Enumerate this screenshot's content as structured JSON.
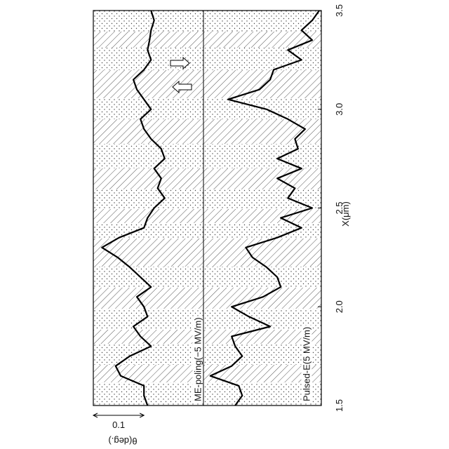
{
  "chart_data": {
    "type": "line",
    "xlabel": "X(μm)",
    "ylabel": "θ(deg.)",
    "xlim": [
      1.5,
      3.5
    ],
    "xticks": [
      1.5,
      {
        "value": 2.0,
        "label": "2.0"
      },
      2.5,
      {
        "value": 3.0,
        "label": "3.0"
      },
      3.5
    ],
    "ylim": [
      0,
      0.45
    ],
    "scale_bar": {
      "value": 0.1
    },
    "x": [
      1.5,
      1.55,
      1.6,
      1.65,
      1.7,
      1.75,
      1.8,
      1.85,
      1.9,
      1.95,
      2.0,
      2.05,
      2.1,
      2.15,
      2.2,
      2.25,
      2.3,
      2.35,
      2.4,
      2.45,
      2.5,
      2.55,
      2.6,
      2.65,
      2.7,
      2.75,
      2.8,
      2.85,
      2.9,
      2.95,
      3.0,
      3.05,
      3.1,
      3.15,
      3.2,
      3.25,
      3.3,
      3.35,
      3.4,
      3.45,
      3.5
    ],
    "series": [
      {
        "name": "ME-poling(−5 MV/m)",
        "color": "#000000",
        "values": [
          0.107,
          0.1,
          0.1,
          0.054,
          0.044,
          0.072,
          0.114,
          0.093,
          0.079,
          0.107,
          0.1,
          0.086,
          0.114,
          0.093,
          0.072,
          0.048,
          0.017,
          0.051,
          0.1,
          0.107,
          0.12,
          0.141,
          0.127,
          0.134,
          0.12,
          0.141,
          0.134,
          0.114,
          0.1,
          0.093,
          0.114,
          0.1,
          0.086,
          0.079,
          0.1,
          0.114,
          0.107,
          0.111,
          0.114,
          0.12,
          0.114
        ]
      },
      {
        "name": "Pulsed-E(5 MV/m)",
        "color": "#000000",
        "values": [
          0.28,
          0.294,
          0.287,
          0.231,
          0.273,
          0.294,
          0.28,
          0.273,
          0.349,
          0.307,
          0.273,
          0.335,
          0.37,
          0.363,
          0.342,
          0.314,
          0.301,
          0.363,
          0.411,
          0.37,
          0.432,
          0.384,
          0.398,
          0.363,
          0.411,
          0.363,
          0.404,
          0.398,
          0.418,
          0.384,
          0.342,
          0.266,
          0.328,
          0.349,
          0.356,
          0.411,
          0.384,
          0.432,
          0.411,
          0.432,
          0.446
        ]
      }
    ]
  }
}
